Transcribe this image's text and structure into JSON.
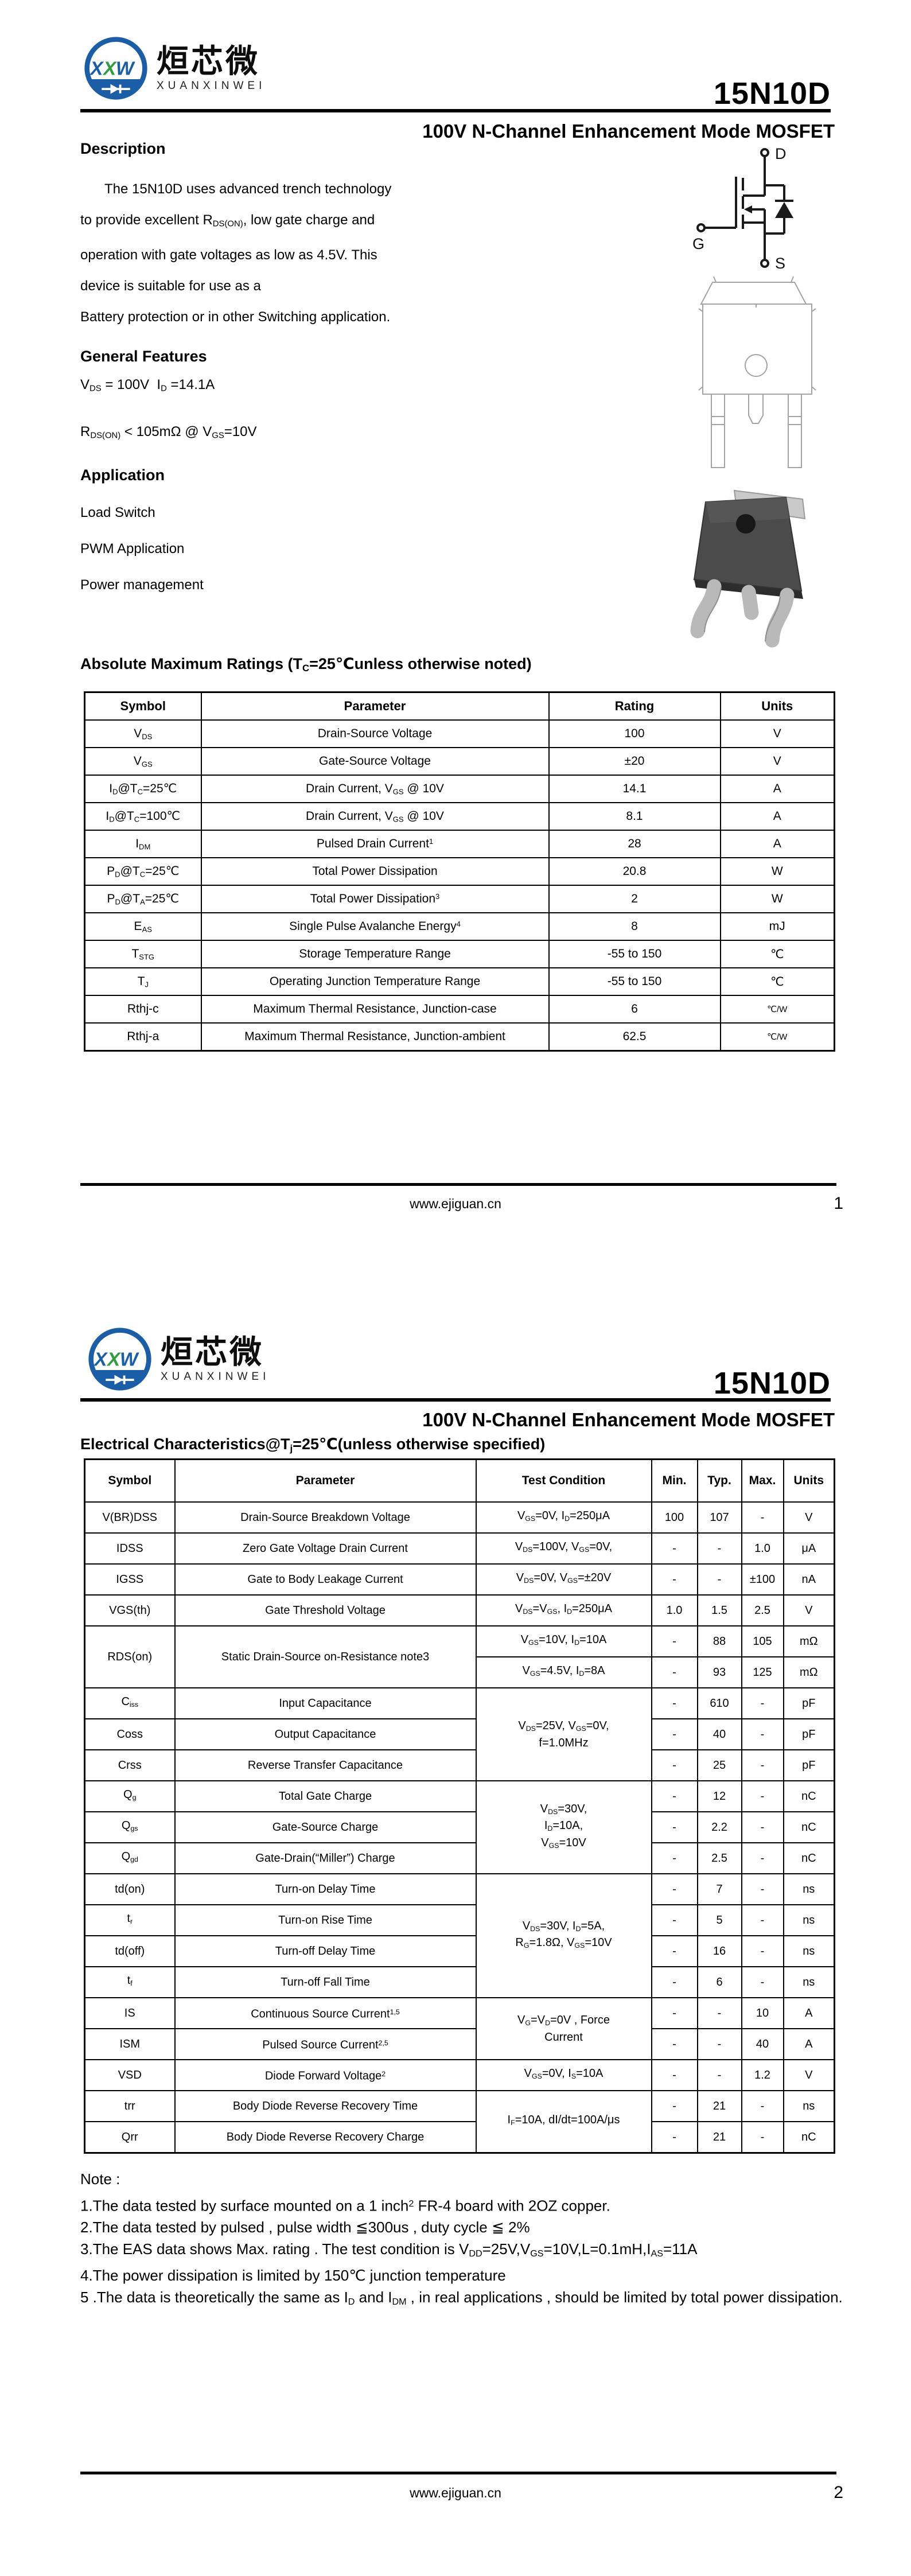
{
  "document": {
    "brand": {
      "monogram_letters": [
        "X",
        "X",
        "W"
      ],
      "name_cn": "烜芯微",
      "name_en": "XUANXINWEI"
    },
    "part_number": "15N10D",
    "subtitle": "100V N-Channel Enhancement Mode MOSFET",
    "footer_site": "www.ejiguan.cn",
    "accent_blue": "#1b5ea8",
    "accent_green": "#2f9e3f"
  },
  "page1": {
    "page_number": "1",
    "description": {
      "heading": "Description",
      "lines": [
        "The 15N10D uses advanced trench technology",
        "to provide excellent R_DS(ON)_, low gate charge and",
        "operation with gate voltages as low as 4.5V. This",
        "device is suitable for use as a",
        "Battery protection or in other Switching application."
      ]
    },
    "features": {
      "heading": "General Features",
      "lines": [
        "V_DS_ = 100V  I_D_ =14.1A",
        "R_DS(ON)_ < 105mΩ @ V_GS_=10V"
      ]
    },
    "application": {
      "heading": "Application",
      "items": [
        "Load Switch",
        "PWM Application",
        "Power management"
      ]
    },
    "mosfet_symbol": {
      "drain": "D",
      "gate": "G",
      "source": "S"
    },
    "abs_max": {
      "title": "Absolute Maximum Ratings (T_C_=25℃unless otherwise noted)",
      "headers": [
        "Symbol",
        "Parameter",
        "Rating",
        "Units"
      ],
      "rows": [
        [
          "V_DS_",
          "Drain-Source Voltage",
          "100",
          "V"
        ],
        [
          "V_GS_",
          "Gate-Source Voltage",
          "±20",
          "V"
        ],
        [
          "I_D_@T_C_=25℃",
          "Drain Current, V_GS_ @ 10V",
          "14.1",
          "A"
        ],
        [
          "I_D_@T_C_=100℃",
          "Drain Current, V_GS_ @ 10V",
          "8.1",
          "A"
        ],
        [
          "I_DM_",
          "Pulsed Drain Current^1^",
          "28",
          "A"
        ],
        [
          "P_D_@T_C_=25℃",
          "Total Power Dissipation",
          "20.8",
          "W"
        ],
        [
          "P_D_@T_A_=25℃",
          "Total Power Dissipation^3^",
          "2",
          "W"
        ],
        [
          "E_AS_",
          "Single Pulse Avalanche Energy^4^",
          "8",
          "mJ"
        ],
        [
          "T_STG_",
          "Storage Temperature Range",
          "-55 to 150",
          "℃"
        ],
        [
          "T_J_",
          "Operating Junction Temperature Range",
          "-55 to 150",
          "℃"
        ],
        [
          "Rthj-c",
          "Maximum Thermal Resistance, Junction-case",
          "6",
          "℃/W"
        ],
        [
          "Rthj-a",
          "Maximum Thermal Resistance, Junction-ambient",
          "62.5",
          "℃/W"
        ]
      ]
    }
  },
  "page2": {
    "page_number": "2",
    "section_title": "Electrical Characteristics@T_j_=25℃(unless otherwise specified)",
    "table": {
      "headers": [
        "Symbol",
        "Parameter",
        "Test Condition",
        "Min.",
        "Typ.",
        "Max.",
        "Units"
      ],
      "rows": [
        {
          "sym": "V(BR)DSS",
          "param": "Drain-Source Breakdown Voltage",
          "cond": "V_GS_=0V, I_D_=250μA",
          "min": "100",
          "typ": "107",
          "max": "-",
          "unit": "V"
        },
        {
          "sym": "IDSS",
          "param": "Zero Gate Voltage Drain Current",
          "cond": "V_DS_=100V, V_GS_=0V,",
          "min": "-",
          "typ": "-",
          "max": "1.0",
          "unit": "μA"
        },
        {
          "sym": "IGSS",
          "param": "Gate to Body Leakage Current",
          "cond": "V_DS_=0V, V_GS_=±20V",
          "min": "-",
          "typ": "-",
          "max": "±100",
          "unit": "nA"
        },
        {
          "sym": "VGS(th)",
          "param": "Gate Threshold Voltage",
          "cond": "V_DS_=V_GS_, I_D_=250μA",
          "min": "1.0",
          "typ": "1.5",
          "max": "2.5",
          "unit": "V"
        },
        {
          "sym": "RDS(on)",
          "symSpan": 2,
          "param": "Static Drain-Source on-Resistance note3",
          "paramSpan": 2,
          "cond": "V_GS_=10V, I_D_=10A",
          "min": "-",
          "typ": "88",
          "max": "105",
          "unit": "mΩ"
        },
        {
          "cond": "V_GS_=4.5V, I_D_=8A",
          "min": "-",
          "typ": "93",
          "max": "125",
          "unit": "mΩ"
        },
        {
          "sym": "C_iss_",
          "param": "Input Capacitance",
          "cond": "V_DS_=25V, V_GS_=0V,\nf=1.0MHz",
          "condSpan": 3,
          "min": "-",
          "typ": "610",
          "max": "-",
          "unit": "pF"
        },
        {
          "sym": "Coss",
          "param": "Output Capacitance",
          "min": "-",
          "typ": "40",
          "max": "-",
          "unit": "pF"
        },
        {
          "sym": "Crss",
          "param": "Reverse Transfer Capacitance",
          "min": "-",
          "typ": "25",
          "max": "-",
          "unit": "pF"
        },
        {
          "sym": "Q_g_",
          "param": "Total Gate Charge",
          "cond": "V_DS_=30V,\nI_D_=10A,\nV_GS_=10V",
          "condSpan": 3,
          "min": "-",
          "typ": "12",
          "max": "-",
          "unit": "nC"
        },
        {
          "sym": "Q_gs_",
          "param": "Gate-Source Charge",
          "min": "-",
          "typ": "2.2",
          "max": "-",
          "unit": "nC"
        },
        {
          "sym": "Q_gd_",
          "param": "Gate-Drain(“Miller”) Charge",
          "min": "-",
          "typ": "2.5",
          "max": "-",
          "unit": "nC"
        },
        {
          "sym": "td(on)",
          "param": "Turn-on Delay Time",
          "cond": "V_DS_=30V, I_D_=5A,\nR_G_=1.8Ω, V_GS_=10V",
          "condSpan": 4,
          "min": "-",
          "typ": "7",
          "max": "-",
          "unit": "ns"
        },
        {
          "sym": "t_r_",
          "param": "Turn-on Rise Time",
          "min": "-",
          "typ": "5",
          "max": "-",
          "unit": "ns"
        },
        {
          "sym": "td(off)",
          "param": "Turn-off Delay Time",
          "min": "-",
          "typ": "16",
          "max": "-",
          "unit": "ns"
        },
        {
          "sym": "t_f_",
          "param": "Turn-off Fall Time",
          "min": "-",
          "typ": "6",
          "max": "-",
          "unit": "ns"
        },
        {
          "sym": "IS",
          "param": "Continuous Source Current^1,5^",
          "cond": "V_G_=V_D_=0V , Force\nCurrent",
          "condSpan": 2,
          "min": "-",
          "typ": "-",
          "max": "10",
          "unit": "A"
        },
        {
          "sym": "ISM",
          "param": "Pulsed Source Current^2,5^",
          "min": "-",
          "typ": "-",
          "max": "40",
          "unit": "A"
        },
        {
          "sym": "VSD",
          "param": "Diode Forward Voltage^2^",
          "cond": "V_GS_=0V, I_S_=10A",
          "min": "-",
          "typ": "-",
          "max": "1.2",
          "unit": "V"
        },
        {
          "sym": "trr",
          "param": "Body Diode Reverse Recovery Time",
          "cond": "I_F_=10A, dI/dt=100A/μs",
          "condSpan": 2,
          "min": "-",
          "typ": "21",
          "max": "-",
          "unit": "ns"
        },
        {
          "sym": "Qrr",
          "param": "Body Diode Reverse Recovery Charge",
          "min": "-",
          "typ": "21",
          "max": "-",
          "unit": "nC"
        }
      ]
    },
    "notes": {
      "heading": "Note :",
      "lines": [
        "1.The data tested by surface mounted on a 1 inch^2^ FR-4 board with 2OZ copper.",
        "2.The data tested by pulsed , pulse width ≦300us , duty cycle ≦ 2%",
        "3.The EAS data shows Max. rating . The test condition is V_DD_=25V,V_GS_=10V,L=0.1mH,I_AS_=11A",
        "4.The power dissipation is limited by 150℃ junction temperature",
        "5 .The data is theoretically the same as I_D_ and I_DM_ , in real applications , should be limited by total power dissipation."
      ]
    }
  }
}
